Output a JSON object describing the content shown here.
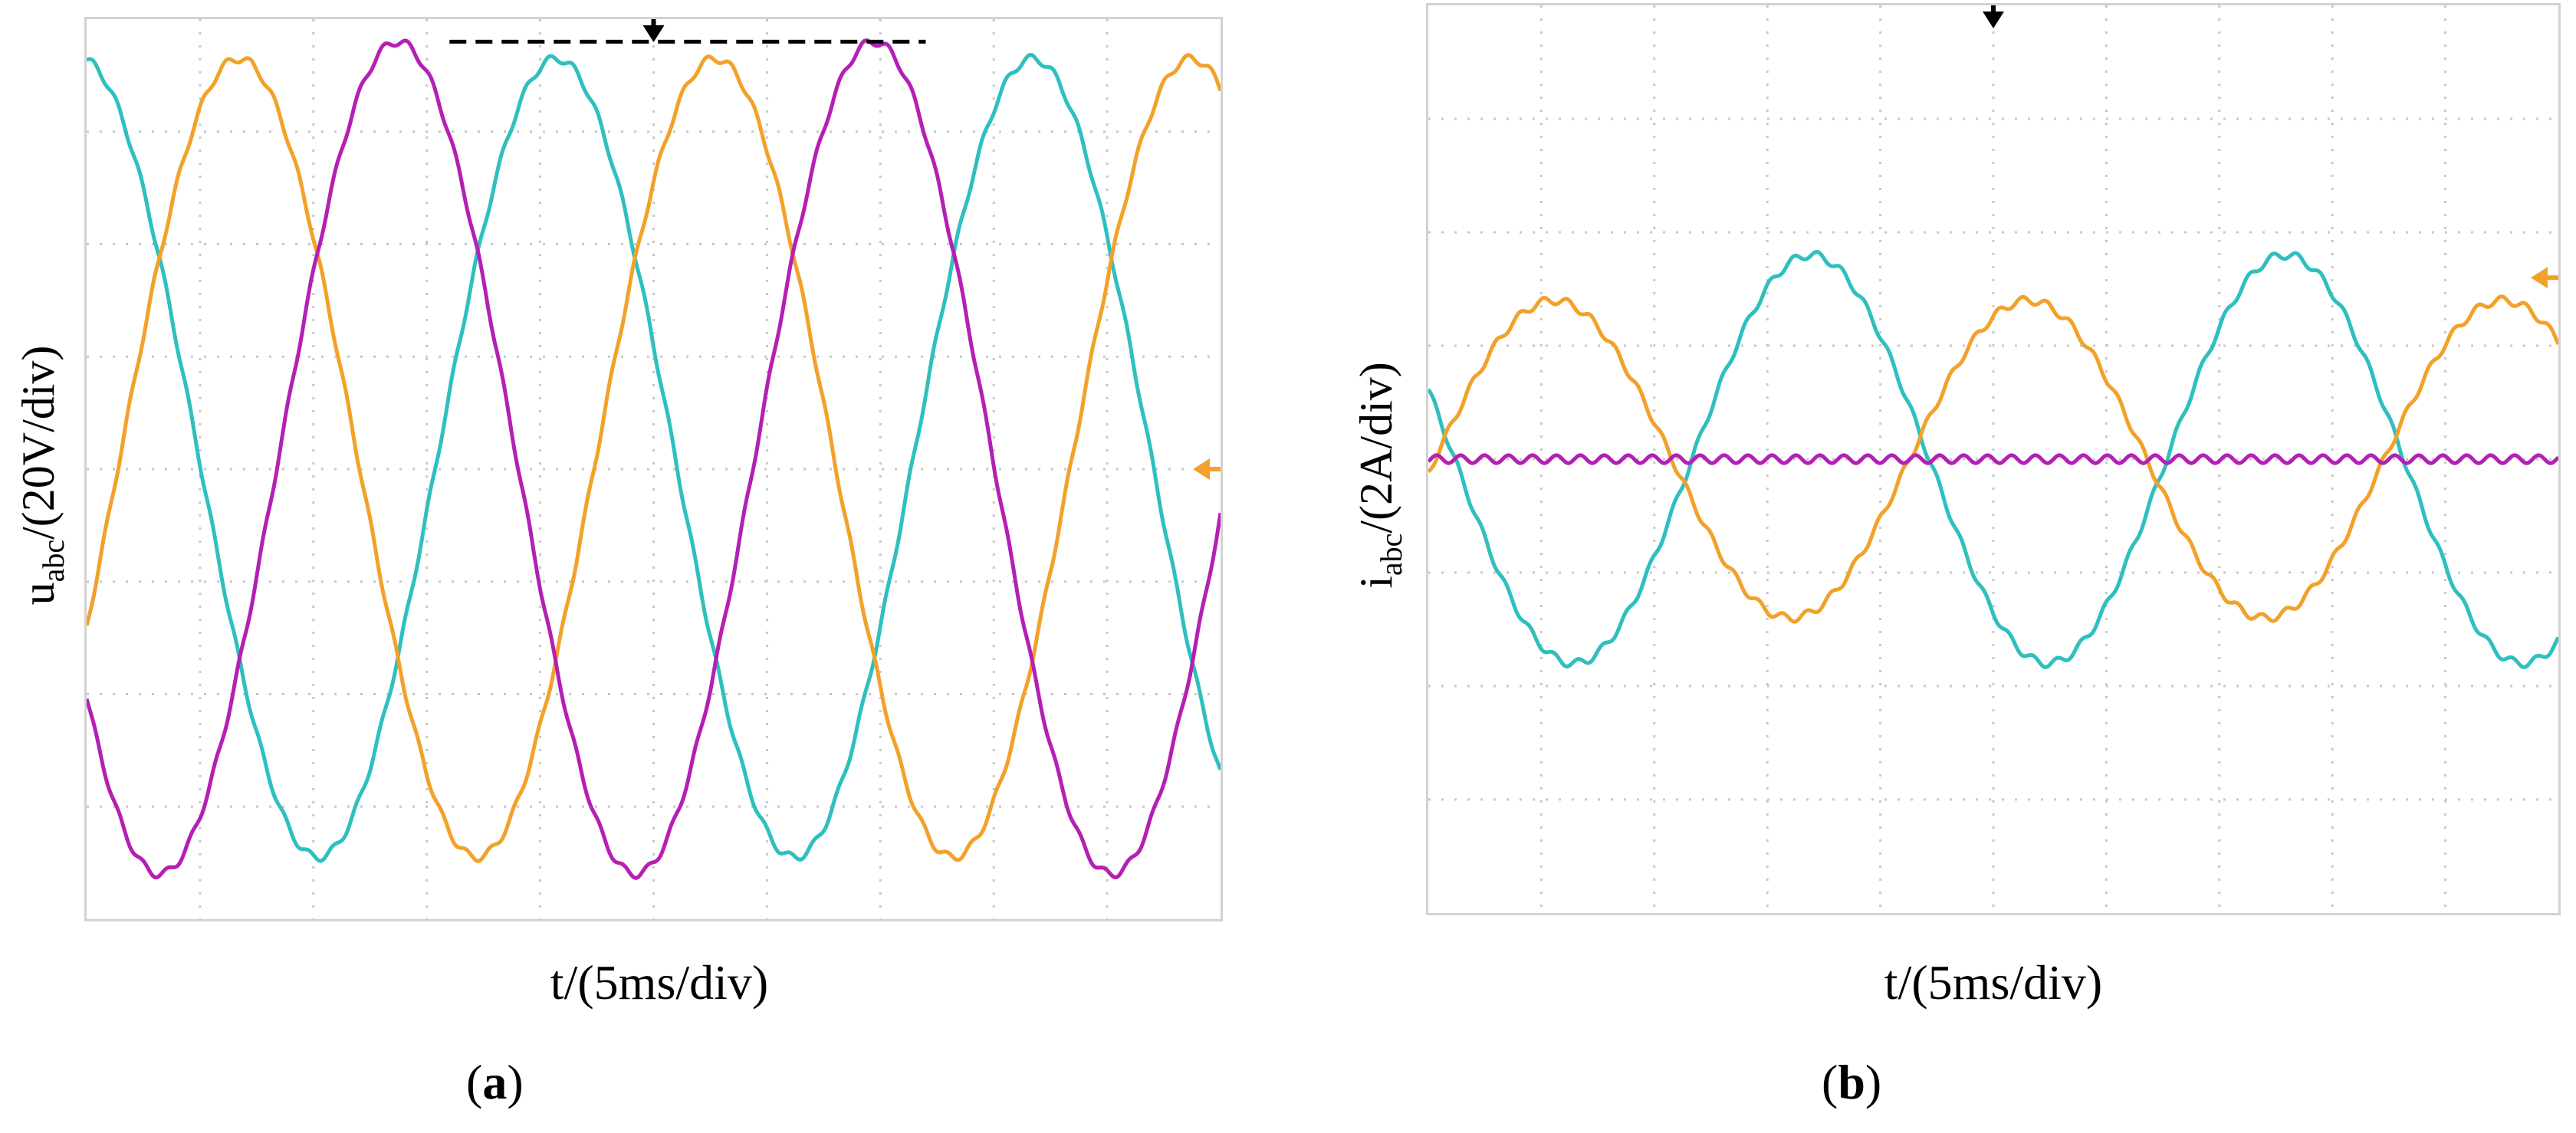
{
  "charts": {
    "a": {
      "caption_letter": "a",
      "ylabel_main": "u",
      "ylabel_sub": "abc",
      "ylabel_unit": "/(20V/div)",
      "xlabel": "t/(5ms/div)"
    },
    "b": {
      "caption_letter": "b",
      "ylabel_main": "i",
      "ylabel_sub": "abc",
      "ylabel_unit": "/(2A/div)",
      "xlabel": "t/(5ms/div)"
    }
  },
  "chart_data": [
    {
      "type": "line",
      "xlabel": "t/(5ms/div)",
      "ylabel": "uabc/(20V/div)",
      "x_unit": "div",
      "y_unit": "div",
      "xlim": [
        0,
        10
      ],
      "ylim": [
        -4,
        4
      ],
      "grid": true,
      "period_div": 4.2,
      "series": [
        {
          "color": "#2fbfbf",
          "amplitude_div": 3.55,
          "offset_div": 0.1,
          "phase_deg": 95
        },
        {
          "color": "#f2a12a",
          "amplitude_div": 3.55,
          "offset_div": 0.1,
          "phase_deg": -25
        },
        {
          "color": "#b41fb4",
          "amplitude_div": 3.7,
          "offset_div": 0.1,
          "phase_deg": -145
        }
      ],
      "markers": {
        "trigger_color": "#000000",
        "level_color": "#f2a12a",
        "level_div": 0
      }
    },
    {
      "type": "line",
      "xlabel": "t/(5ms/div)",
      "ylabel": "iabc/(2A/div)",
      "x_unit": "div",
      "y_unit": "div",
      "xlim": [
        0,
        10
      ],
      "ylim": [
        -4,
        4
      ],
      "grid": true,
      "period_div": 4.2,
      "series": [
        {
          "color": "#2fbfbf",
          "amplitude_div": 1.8,
          "offset_div": 0.0,
          "phase_deg": 160
        },
        {
          "color": "#f2a12a",
          "amplitude_div": 1.4,
          "offset_div": 0.0,
          "phase_deg": -5
        },
        {
          "color": "#b41fb4",
          "amplitude_div": 0.0,
          "offset_div": 0.0,
          "phase_deg": 0
        }
      ],
      "markers": {
        "trigger_color": "#000000",
        "level_color": "#f2a12a",
        "level_div": 1.6
      }
    }
  ]
}
